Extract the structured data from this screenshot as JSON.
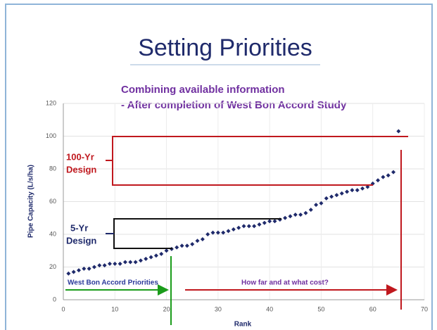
{
  "chart_data": {
    "type": "scatter",
    "title": "Setting Priorities",
    "subtitle": [
      "Combining available information",
      "- After completion of West Bon Accord Study"
    ],
    "xlabel": "Rank",
    "ylabel": "Pipe Capacity (L/s/ha)",
    "x": [
      1,
      2,
      3,
      4,
      5,
      6,
      7,
      8,
      9,
      10,
      11,
      12,
      13,
      14,
      15,
      16,
      17,
      18,
      19,
      20,
      21,
      22,
      23,
      24,
      25,
      26,
      27,
      28,
      29,
      30,
      31,
      32,
      33,
      34,
      35,
      36,
      37,
      38,
      39,
      40,
      41,
      42,
      43,
      44,
      45,
      46,
      47,
      48,
      49,
      50,
      51,
      52,
      53,
      54,
      55,
      56,
      57,
      58,
      59,
      60,
      61,
      62,
      63,
      64,
      65
    ],
    "values": [
      16,
      17,
      18,
      19,
      19,
      20,
      21,
      21,
      22,
      22,
      22,
      23,
      23,
      23,
      24,
      25,
      26,
      27,
      28,
      30,
      31,
      32,
      33,
      33,
      34,
      36,
      37,
      40,
      41,
      41,
      41,
      42,
      43,
      44,
      45,
      45,
      45,
      46,
      47,
      48,
      48,
      49,
      50,
      51,
      52,
      52,
      53,
      55,
      58,
      59,
      62,
      63,
      64,
      65,
      66,
      67,
      67,
      68,
      69,
      71,
      73,
      75,
      76,
      78,
      103
    ],
    "color": "#1f2a6b",
    "xlim": [
      0,
      70
    ],
    "ylim": [
      0,
      120
    ],
    "xticks": [
      0,
      10,
      20,
      30,
      40,
      50,
      60,
      70
    ],
    "yticks": [
      0,
      20,
      40,
      60,
      80,
      100,
      120
    ],
    "grid": true,
    "annotations": [
      "100-Yr",
      "Design",
      "5-Yr",
      "Design",
      "West Bon Accord Priorities",
      "How far and at what cost?"
    ]
  }
}
